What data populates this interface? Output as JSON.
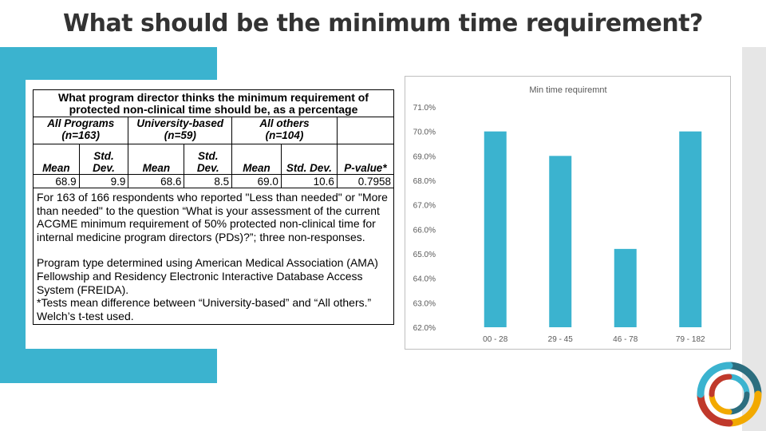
{
  "slide": {
    "title": "What should be the minimum time requirement?"
  },
  "table": {
    "header": "What program director thinks the minimum requirement of protected non-clinical time should be, as a percentage",
    "groups": [
      {
        "name": "All Programs",
        "n": "(n=163)"
      },
      {
        "name": "University-based",
        "n": "(n=59)"
      },
      {
        "name": "All others",
        "n": "(n=104)"
      }
    ],
    "columns": {
      "mean": "Mean",
      "std_line1": "Std.",
      "std_line2": "Dev.",
      "std_dev": "Std. Dev.",
      "pvalue": "P-value*"
    },
    "values": [
      "68.9",
      "9.9",
      "68.6",
      "8.5",
      "69.0",
      "10.6",
      "0.7958"
    ],
    "notes": {
      "respondents": "For 163 of 166 respondents who reported \"Less than needed\" or \"More than needed\" to the question “What is your assessment of the current ACGME minimum requirement of 50% protected non-clinical time for internal medicine program directors (PDs)?”; three non-responses.",
      "program_type": "Program type determined using American Medical Association (AMA) Fellowship and Residency Electronic Interactive Database Access System (FREIDA).",
      "test_note": "*Tests mean difference between “University-based” and “All others.” Welch’s t-test used."
    }
  },
  "chart_data": {
    "type": "bar",
    "title": "Min time requiremnt",
    "categories": [
      "00 - 28",
      "29 - 45",
      "46 - 78",
      "79 - 182"
    ],
    "values": [
      70.0,
      69.0,
      65.2,
      70.0
    ],
    "ylim": [
      62.0,
      71.0
    ],
    "yticks": [
      62.0,
      63.0,
      64.0,
      65.0,
      66.0,
      67.0,
      68.0,
      69.0,
      70.0,
      71.0
    ],
    "ytick_labels": [
      "62.0%",
      "63.0%",
      "64.0%",
      "65.0%",
      "66.0%",
      "67.0%",
      "68.0%",
      "69.0%",
      "70.0%",
      "71.0%"
    ],
    "bar_color": "#3bb3cf",
    "grid": false,
    "xlabel": "",
    "ylabel": ""
  },
  "colors": {
    "accent": "#3bb3cf",
    "rail": "#e6e6e6",
    "title": "#333333"
  },
  "logo": {
    "icon": "circular-swirl-logo-icon",
    "colors": [
      "#2c6e7f",
      "#3bb3cf",
      "#c0392b",
      "#f2a900"
    ]
  }
}
